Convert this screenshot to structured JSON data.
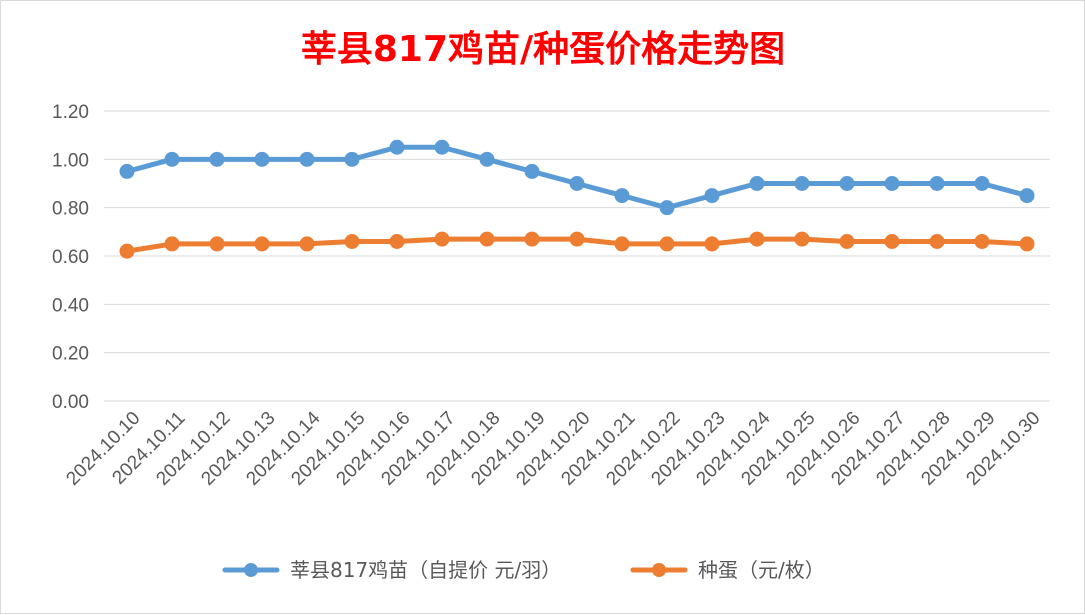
{
  "chart_data": {
    "type": "line",
    "title": "莘县817鸡苗/种蛋价格走势图",
    "categories": [
      "2024.10.10",
      "2024.10.11",
      "2024.10.12",
      "2024.10.13",
      "2024.10.14",
      "2024.10.15",
      "2024.10.16",
      "2024.10.17",
      "2024.10.18",
      "2024.10.19",
      "2024.10.20",
      "2024.10.21",
      "2024.10.22",
      "2024.10.23",
      "2024.10.24",
      "2024.10.25",
      "2024.10.26",
      "2024.10.27",
      "2024.10.28",
      "2024.10.29",
      "2024.10.30"
    ],
    "y_ticks": [
      "0.00",
      "0.20",
      "0.40",
      "0.60",
      "0.80",
      "1.00",
      "1.20"
    ],
    "ylim": [
      0,
      1.2
    ],
    "grid": true,
    "legend_position": "bottom",
    "series": [
      {
        "name": "莘县817鸡苗（自提价 元/羽）",
        "color": "#5b9bd5",
        "values": [
          0.95,
          1.0,
          1.0,
          1.0,
          1.0,
          1.0,
          1.05,
          1.05,
          1.0,
          0.95,
          0.9,
          0.85,
          0.8,
          0.85,
          0.9,
          0.9,
          0.9,
          0.9,
          0.9,
          0.9,
          0.85
        ]
      },
      {
        "name": "种蛋（元/枚）",
        "color": "#ed7d31",
        "values": [
          0.62,
          0.65,
          0.65,
          0.65,
          0.65,
          0.66,
          0.66,
          0.67,
          0.67,
          0.67,
          0.67,
          0.65,
          0.65,
          0.65,
          0.67,
          0.67,
          0.66,
          0.66,
          0.66,
          0.66,
          0.65
        ]
      }
    ],
    "title_color": "#ff0000"
  }
}
